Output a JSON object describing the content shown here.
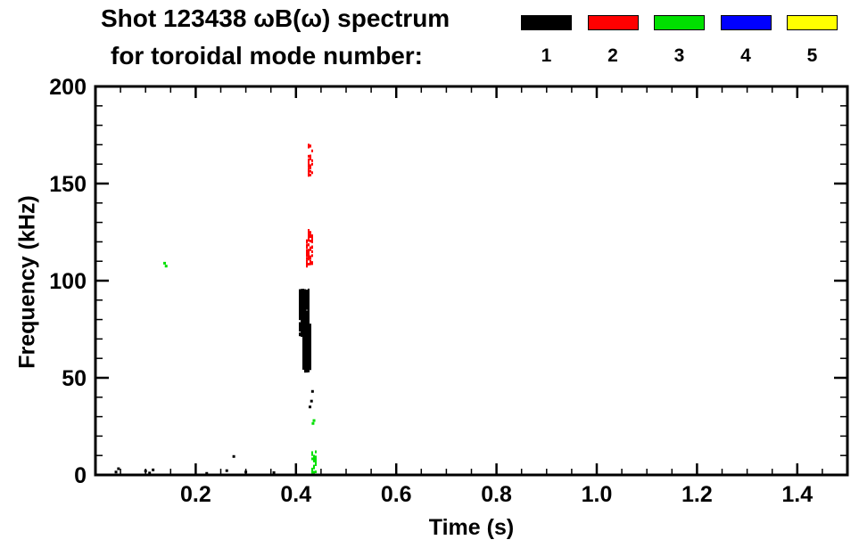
{
  "header": {
    "title": "Shot 123438 ωB(ω) spectrum",
    "subtitle": "for toroidal mode number:"
  },
  "chart_data": {
    "type": "scatter",
    "title": "Shot 123438 ωB(ω) spectrum",
    "subtitle": "for toroidal mode number:",
    "xlabel": "Time (s)",
    "ylabel": "Frequency (kHz)",
    "xlim": [
      0.0,
      1.5
    ],
    "ylim": [
      0,
      200
    ],
    "xticks": [
      0.2,
      0.4,
      0.6,
      0.8,
      1.0,
      1.2,
      1.4
    ],
    "xtick_labels": [
      "0.2",
      "0.4",
      "0.6",
      "0.8",
      "1.0",
      "1.2",
      "1.4"
    ],
    "x_minor_step": 0.05,
    "yticks": [
      0,
      50,
      100,
      150,
      200
    ],
    "ytick_labels": [
      "0",
      "50",
      "100",
      "150",
      "200"
    ],
    "y_minor_step": 10,
    "grid": false,
    "legend_position": "top-right",
    "legend": [
      {
        "label": "1",
        "color": "#000000"
      },
      {
        "label": "2",
        "color": "#ff0000"
      },
      {
        "label": "3",
        "color": "#00e000"
      },
      {
        "label": "4",
        "color": "#0000ff"
      },
      {
        "label": "5",
        "color": "#ffff00"
      }
    ],
    "series": [
      {
        "name": "toroidal mode n=1",
        "color": "#000000",
        "clusters": [
          {
            "t": [
              0.408,
              0.427
            ],
            "f": [
              72,
              95
            ],
            "n": 420,
            "w": 2,
            "h": 4
          },
          {
            "t": [
              0.413,
              0.429
            ],
            "f": [
              54,
              77
            ],
            "n": 240,
            "w": 2,
            "h": 6
          }
        ],
        "points": [
          [
            0.041,
            1.5
          ],
          [
            0.046,
            3.2
          ],
          [
            0.1,
            2.0
          ],
          [
            0.108,
            1.0
          ],
          [
            0.115,
            2.6
          ],
          [
            0.222,
            0.8
          ],
          [
            0.262,
            2.2
          ],
          [
            0.276,
            9.5
          ],
          [
            0.3,
            1.5
          ],
          [
            0.356,
            1.2
          ],
          [
            0.428,
            35.0
          ],
          [
            0.431,
            38.0
          ],
          [
            0.433,
            43.0
          ]
        ]
      },
      {
        "name": "toroidal mode n=2",
        "color": "#ff0000",
        "clusters": [
          {
            "t": [
              0.424,
              0.432
            ],
            "f": [
              152,
              170
            ],
            "n": 26,
            "w": 2,
            "h": 3
          },
          {
            "t": [
              0.421,
              0.433
            ],
            "f": [
              107,
              126
            ],
            "n": 70,
            "w": 2,
            "h": 3
          }
        ],
        "points": []
      },
      {
        "name": "toroidal mode n=3",
        "color": "#00e000",
        "clusters": [
          {
            "t": [
              0.43,
              0.441
            ],
            "f": [
              0,
              12
            ],
            "n": 28,
            "w": 2,
            "h": 3
          }
        ],
        "points": [
          [
            0.434,
            26.5
          ],
          [
            0.436,
            28.0
          ],
          [
            0.138,
            109.0
          ],
          [
            0.141,
            107.5
          ]
        ]
      },
      {
        "name": "toroidal mode n=4",
        "color": "#0000ff",
        "clusters": [],
        "points": []
      },
      {
        "name": "toroidal mode n=5",
        "color": "#ffff00",
        "clusters": [],
        "points": []
      }
    ]
  }
}
